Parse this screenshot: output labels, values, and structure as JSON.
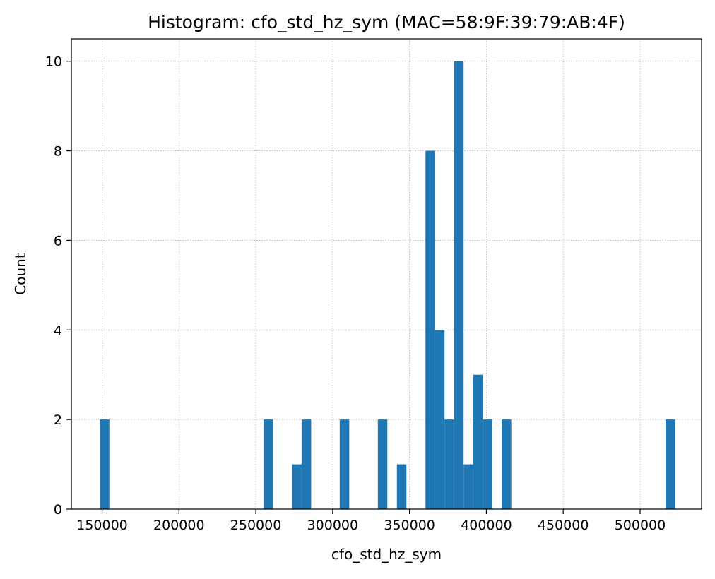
{
  "chart_data": {
    "type": "bar",
    "title": "Histogram: cfo_std_hz_sym (MAC=58:9F:39:79:AB:4F)",
    "xlabel": "cfo_std_hz_sym",
    "ylabel": "Count",
    "xlim": [
      130000,
      540000
    ],
    "ylim": [
      0,
      10.5
    ],
    "xticks": [
      150000,
      200000,
      250000,
      300000,
      350000,
      400000,
      450000,
      500000
    ],
    "yticks": [
      0,
      2,
      4,
      6,
      8,
      10
    ],
    "grid": true,
    "bar_color": "#1f77b4",
    "bins": [
      {
        "x0": 148500,
        "x1": 154700,
        "count": 2
      },
      {
        "x0": 255000,
        "x1": 261200,
        "count": 2
      },
      {
        "x0": 273600,
        "x1": 279800,
        "count": 1
      },
      {
        "x0": 279800,
        "x1": 286000,
        "count": 2
      },
      {
        "x0": 304600,
        "x1": 310800,
        "count": 2
      },
      {
        "x0": 329400,
        "x1": 335600,
        "count": 2
      },
      {
        "x0": 341800,
        "x1": 348000,
        "count": 1
      },
      {
        "x0": 360400,
        "x1": 366600,
        "count": 8
      },
      {
        "x0": 366600,
        "x1": 372800,
        "count": 4
      },
      {
        "x0": 372800,
        "x1": 379000,
        "count": 2
      },
      {
        "x0": 379000,
        "x1": 385200,
        "count": 10
      },
      {
        "x0": 385200,
        "x1": 391400,
        "count": 1
      },
      {
        "x0": 391400,
        "x1": 397600,
        "count": 3
      },
      {
        "x0": 397600,
        "x1": 403800,
        "count": 2
      },
      {
        "x0": 410000,
        "x1": 416200,
        "count": 2
      },
      {
        "x0": 516600,
        "x1": 522800,
        "count": 2
      }
    ]
  }
}
